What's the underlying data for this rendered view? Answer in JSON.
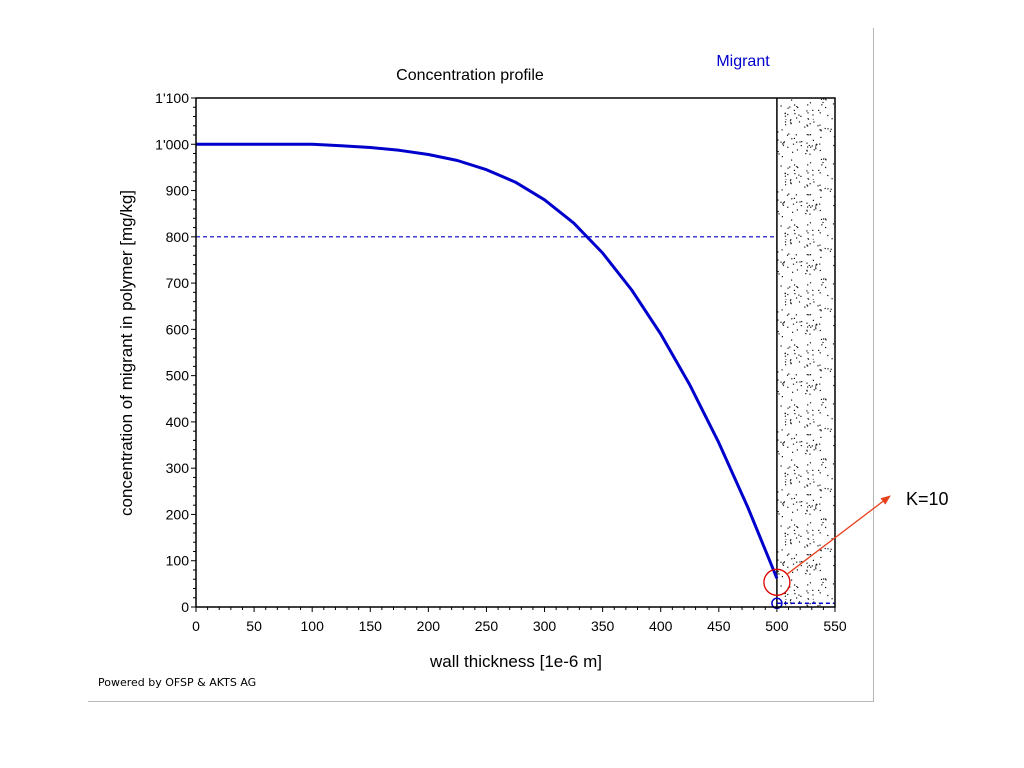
{
  "chart_data": {
    "type": "line",
    "title": "Concentration profile",
    "legend_label": "Migrant",
    "xlabel": "wall thickness [1e-6 m]",
    "ylabel": "concentration of migrant in polymer [mg/kg]",
    "xlim": [
      0,
      550
    ],
    "ylim": [
      0,
      1100
    ],
    "x_ticks": [
      0,
      50,
      100,
      150,
      200,
      250,
      300,
      350,
      400,
      450,
      500,
      550
    ],
    "y_ticks": [
      0,
      100,
      200,
      300,
      400,
      500,
      600,
      700,
      800,
      900,
      1000,
      1100
    ],
    "y_tick_labels": [
      "0",
      "100",
      "200",
      "300",
      "400",
      "500",
      "600",
      "700",
      "800",
      "900",
      "1'000",
      "1'100"
    ],
    "series": [
      {
        "color": "#0000cc",
        "x": [
          0,
          25,
          50,
          75,
          100,
          125,
          150,
          175,
          200,
          225,
          250,
          275,
          300,
          325,
          350,
          375,
          400,
          425,
          450,
          475,
          500
        ],
        "y": [
          1000,
          1000,
          1000,
          1000,
          1000,
          997,
          993,
          987,
          978,
          965,
          945,
          918,
          880,
          830,
          765,
          685,
          590,
          480,
          355,
          215,
          62
        ]
      }
    ],
    "reference_line": {
      "y": 800,
      "x_range": [
        0,
        500
      ],
      "style": "dashed"
    },
    "food_concentration_line": {
      "y": 8,
      "x_range": [
        500,
        550
      ],
      "style": "dashed"
    },
    "interface_x": 500,
    "annotation": {
      "text": "K=10",
      "target": {
        "x": 500,
        "y": 62
      }
    },
    "colors": {
      "series": "#0000cc",
      "annotation_arrow": "#e8401c",
      "circle": "#dd0000",
      "legend_text": "#0000cc"
    }
  },
  "footer": "Powered by OFSP & AKTS AG"
}
